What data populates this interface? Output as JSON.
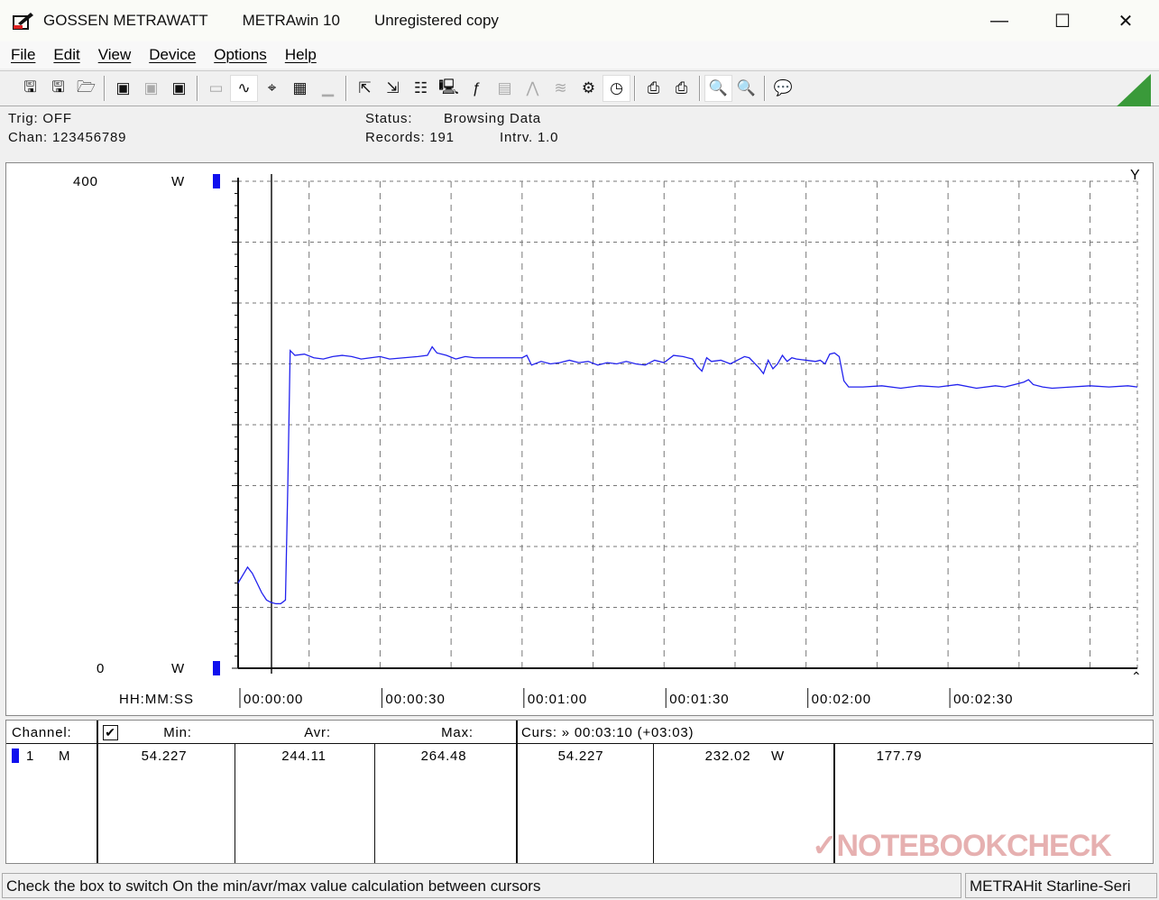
{
  "window": {
    "app": "GOSSEN METRAWATT",
    "product": "METRAwin 10",
    "registration": "Unregistered copy"
  },
  "menu": [
    "File",
    "Edit",
    "View",
    "Device",
    "Options",
    "Help"
  ],
  "toolbar": [
    {
      "icon": "save-export-icon",
      "g": "🖫"
    },
    {
      "icon": "save-import-icon",
      "g": "🖫"
    },
    {
      "icon": "open-folder-icon",
      "g": "🗁"
    },
    "sep",
    {
      "icon": "device-read-icon",
      "g": "▣"
    },
    {
      "icon": "device-disconnect-icon",
      "g": "▣",
      "disabled": true
    },
    {
      "icon": "device-memory-icon",
      "g": "▣"
    },
    "sep",
    {
      "icon": "digital-display-icon",
      "g": "▭",
      "disabled": true
    },
    {
      "icon": "waveform-view-icon",
      "g": "∿",
      "active": true
    },
    {
      "icon": "crosshair-icon",
      "g": "⌖"
    },
    {
      "icon": "table-view-icon",
      "g": "▦"
    },
    {
      "icon": "histogram-icon",
      "g": "▁",
      "disabled": true
    },
    "sep",
    {
      "icon": "transfer-out-icon",
      "g": "⇱"
    },
    {
      "icon": "transfer-in-icon",
      "g": "⇲"
    },
    {
      "icon": "channel-config-icon",
      "g": "☷"
    },
    {
      "icon": "monitor-icon",
      "g": "🖳"
    },
    {
      "icon": "function-icon",
      "g": "ƒ"
    },
    {
      "icon": "meter-icon",
      "g": "▤",
      "disabled": true
    },
    {
      "icon": "signal-icon",
      "g": "⋀",
      "disabled": true
    },
    {
      "icon": "signal-noise-icon",
      "g": "≋",
      "disabled": true
    },
    {
      "icon": "settings-icon",
      "g": "⚙"
    },
    {
      "icon": "clock-icon",
      "g": "◷",
      "active": true
    },
    "sep",
    {
      "icon": "print-preview-icon",
      "g": "⎙"
    },
    {
      "icon": "print-icon",
      "g": "⎙"
    },
    "sep",
    {
      "icon": "zoom-graph-icon",
      "g": "🔍",
      "active": true
    },
    {
      "icon": "zoom-out-icon",
      "g": "🔍"
    },
    "sep",
    {
      "icon": "help-message-icon",
      "g": "💬"
    }
  ],
  "info": {
    "trig": "Trig: OFF",
    "chan": "Chan:  123456789",
    "status_label": "Status:",
    "status_value": "Browsing Data",
    "records": "Records: 191",
    "interval": "Intrv. 1.0"
  },
  "chart_data": {
    "type": "line",
    "ylim": [
      0,
      400
    ],
    "y_top_label": "400",
    "y_bottom_label": "0",
    "unit": "W",
    "xlabel": "HH:MM:SS",
    "xlim_seconds": [
      0,
      190
    ],
    "x_ticks": [
      "00:00:00",
      "00:00:30",
      "00:01:00",
      "00:01:30",
      "00:02:00",
      "00:02:30"
    ],
    "grid": true,
    "series_color": "#2222ee",
    "series": [
      {
        "points": [
          [
            0,
            70
          ],
          [
            2,
            83
          ],
          [
            3,
            78
          ],
          [
            4,
            70
          ],
          [
            5,
            62
          ],
          [
            6,
            56
          ],
          [
            7,
            54
          ],
          [
            8,
            53
          ],
          [
            9,
            53
          ],
          [
            10,
            56
          ],
          [
            10.5,
            150
          ],
          [
            11,
            261
          ],
          [
            12,
            257
          ],
          [
            14,
            258
          ],
          [
            16,
            255
          ],
          [
            18,
            254
          ],
          [
            20,
            256
          ],
          [
            22,
            257
          ],
          [
            24,
            256
          ],
          [
            26,
            254
          ],
          [
            28,
            255
          ],
          [
            30,
            256
          ],
          [
            32,
            254
          ],
          [
            35,
            255
          ],
          [
            38,
            256
          ],
          [
            40,
            257
          ],
          [
            41,
            264
          ],
          [
            42,
            259
          ],
          [
            44,
            257
          ],
          [
            46,
            254
          ],
          [
            48,
            256
          ],
          [
            50,
            255
          ],
          [
            55,
            255
          ],
          [
            60,
            255
          ],
          [
            61,
            257
          ],
          [
            62,
            249
          ],
          [
            64,
            252
          ],
          [
            66,
            250
          ],
          [
            68,
            251
          ],
          [
            70,
            253
          ],
          [
            72,
            251
          ],
          [
            74,
            252
          ],
          [
            76,
            249
          ],
          [
            78,
            251
          ],
          [
            80,
            250
          ],
          [
            82,
            252
          ],
          [
            84,
            250
          ],
          [
            86,
            249
          ],
          [
            88,
            253
          ],
          [
            90,
            251
          ],
          [
            92,
            257
          ],
          [
            94,
            256
          ],
          [
            96,
            254
          ],
          [
            97,
            248
          ],
          [
            98,
            244
          ],
          [
            99,
            255
          ],
          [
            100,
            252
          ],
          [
            102,
            253
          ],
          [
            104,
            250
          ],
          [
            106,
            254
          ],
          [
            107,
            256
          ],
          [
            108,
            255
          ],
          [
            110,
            247
          ],
          [
            111,
            242
          ],
          [
            112,
            253
          ],
          [
            113,
            246
          ],
          [
            114,
            250
          ],
          [
            115,
            257
          ],
          [
            116,
            252
          ],
          [
            117,
            255
          ],
          [
            118,
            254
          ],
          [
            120,
            253
          ],
          [
            122,
            252
          ],
          [
            123,
            253
          ],
          [
            124,
            250
          ],
          [
            125,
            258
          ],
          [
            126,
            259
          ],
          [
            127,
            256
          ],
          [
            128,
            236
          ],
          [
            129,
            231
          ],
          [
            132,
            231
          ],
          [
            136,
            232
          ],
          [
            140,
            230
          ],
          [
            144,
            232
          ],
          [
            148,
            231
          ],
          [
            152,
            233
          ],
          [
            156,
            230
          ],
          [
            160,
            232
          ],
          [
            162,
            231
          ],
          [
            164,
            233
          ],
          [
            166,
            235
          ],
          [
            167,
            237
          ],
          [
            168,
            233
          ],
          [
            170,
            231
          ],
          [
            172,
            230
          ],
          [
            176,
            231
          ],
          [
            180,
            232
          ],
          [
            184,
            231
          ],
          [
            188,
            232
          ],
          [
            190,
            231
          ]
        ]
      }
    ]
  },
  "cursor_time": "00:00:00",
  "table": {
    "channel_label": "Channel:",
    "min_label": "Min:",
    "avr_label": "Avr:",
    "max_label": "Max:",
    "curs_label": "Curs: » 00:03:10 (+03:03)",
    "checkbox_checked": true,
    "row": {
      "channel": "1",
      "mode": "M",
      "min": "54.227",
      "avr": "244.11",
      "max": "264.48",
      "curs1": "54.227",
      "curs2": "232.02",
      "unit": "W",
      "curs3": "177.79"
    }
  },
  "status": {
    "message": "Check the box to switch On the min/avr/max value calculation between cursors",
    "device": "METRAHit Starline-Seri"
  },
  "watermark": "NOTEBOOKCHECK"
}
